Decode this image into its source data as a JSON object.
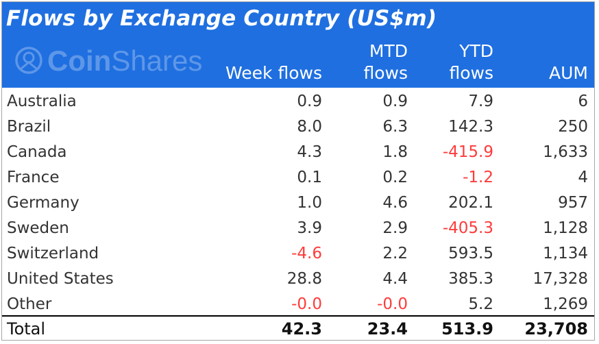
{
  "chart_data": {
    "type": "table",
    "title": "Flows by Exchange Country (US$m)",
    "watermark": "CoinShares",
    "columns": [
      {
        "line1": "",
        "line2": "Week flows"
      },
      {
        "line1": "MTD",
        "line2": "flows"
      },
      {
        "line1": "YTD",
        "line2": "flows"
      },
      {
        "line1": "",
        "line2": "AUM"
      }
    ],
    "rows": [
      {
        "name": "Australia",
        "values": [
          "0.9",
          "0.9",
          "7.9",
          "6"
        ]
      },
      {
        "name": "Brazil",
        "values": [
          "8.0",
          "6.3",
          "142.3",
          "250"
        ]
      },
      {
        "name": "Canada",
        "values": [
          "4.3",
          "1.8",
          "-415.9",
          "1,633"
        ]
      },
      {
        "name": "France",
        "values": [
          "0.1",
          "0.2",
          "-1.2",
          "4"
        ]
      },
      {
        "name": "Germany",
        "values": [
          "1.0",
          "4.6",
          "202.1",
          "957"
        ]
      },
      {
        "name": "Sweden",
        "values": [
          "3.9",
          "2.9",
          "-405.3",
          "1,128"
        ]
      },
      {
        "name": "Switzerland",
        "values": [
          "-4.6",
          "2.2",
          "593.5",
          "1,134"
        ]
      },
      {
        "name": "United States",
        "values": [
          "28.8",
          "4.4",
          "385.3",
          "17,328"
        ]
      },
      {
        "name": "Other",
        "values": [
          "-0.0",
          "-0.0",
          "5.2",
          "1,269"
        ]
      }
    ],
    "total": {
      "name": "Total",
      "values": [
        "42.3",
        "23.4",
        "513.9",
        "23,708"
      ]
    },
    "colors": {
      "header_bg": "#1f6fe0",
      "header_text": "#ffffff",
      "negative": "#ff3b3b",
      "text": "#333333"
    }
  }
}
